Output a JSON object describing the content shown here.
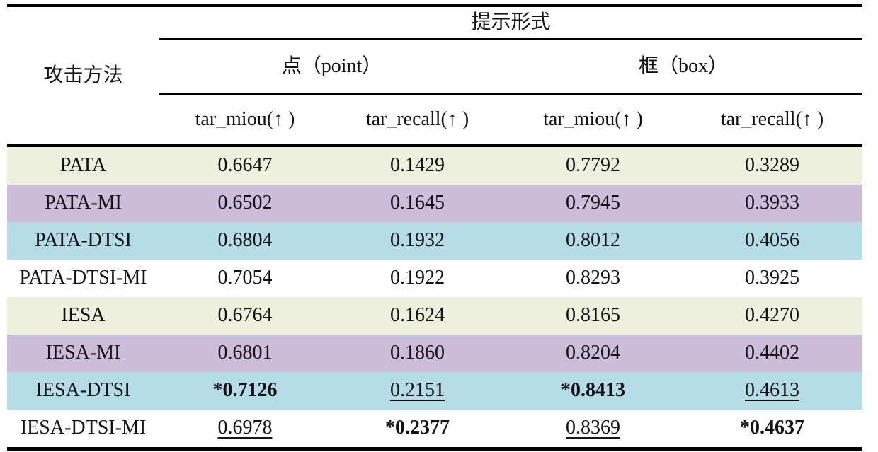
{
  "colors": {
    "green": "#ecf0dd",
    "purple": "#ccbdda",
    "blue": "#b6dce8",
    "white": "#ffffff",
    "rule": "#000000",
    "text": "#121212"
  },
  "table": {
    "corner_header": "攻击方法",
    "top_header": "提示形式",
    "groups": [
      {
        "label": "点（point）"
      },
      {
        "label": "框（box）"
      }
    ],
    "sub_headers": [
      "tar_miou(↑ )",
      "tar_recall(↑ )",
      "tar_miou(↑ )",
      "tar_recall(↑ )"
    ],
    "rows": [
      {
        "method": "PATA",
        "bg": "green",
        "cells": [
          {
            "text": "0.6647"
          },
          {
            "text": "0.1429"
          },
          {
            "text": "0.7792"
          },
          {
            "text": "0.3289"
          }
        ]
      },
      {
        "method": "PATA-MI",
        "bg": "purple",
        "cells": [
          {
            "text": "0.6502"
          },
          {
            "text": "0.1645"
          },
          {
            "text": "0.7945"
          },
          {
            "text": "0.3933"
          }
        ]
      },
      {
        "method": "PATA-DTSI",
        "bg": "blue",
        "cells": [
          {
            "text": "0.6804"
          },
          {
            "text": "0.1932"
          },
          {
            "text": "0.8012"
          },
          {
            "text": "0.4056"
          }
        ]
      },
      {
        "method": "PATA-DTSI-MI",
        "bg": "white",
        "cells": [
          {
            "text": "0.7054"
          },
          {
            "text": "0.1922"
          },
          {
            "text": "0.8293"
          },
          {
            "text": "0.3925"
          }
        ]
      },
      {
        "method": "IESA",
        "bg": "green",
        "cells": [
          {
            "text": "0.6764"
          },
          {
            "text": "0.1624"
          },
          {
            "text": "0.8165"
          },
          {
            "text": "0.4270"
          }
        ]
      },
      {
        "method": "IESA-MI",
        "bg": "purple",
        "cells": [
          {
            "text": "0.6801"
          },
          {
            "text": "0.1860"
          },
          {
            "text": "0.8204"
          },
          {
            "text": "0.4402"
          }
        ]
      },
      {
        "method": "IESA-DTSI",
        "bg": "blue",
        "cells": [
          {
            "text": "*0.7126",
            "bold": true
          },
          {
            "text": "0.2151",
            "underline": true
          },
          {
            "text": "*0.8413",
            "bold": true
          },
          {
            "text": "0.4613",
            "underline": true
          }
        ]
      },
      {
        "method": "IESA-DTSI-MI",
        "bg": "white",
        "cells": [
          {
            "text": "0.6978",
            "underline": true
          },
          {
            "text": "*0.2377",
            "bold": true
          },
          {
            "text": "0.8369",
            "underline": true
          },
          {
            "text": "*0.4637",
            "bold": true
          }
        ]
      }
    ]
  }
}
